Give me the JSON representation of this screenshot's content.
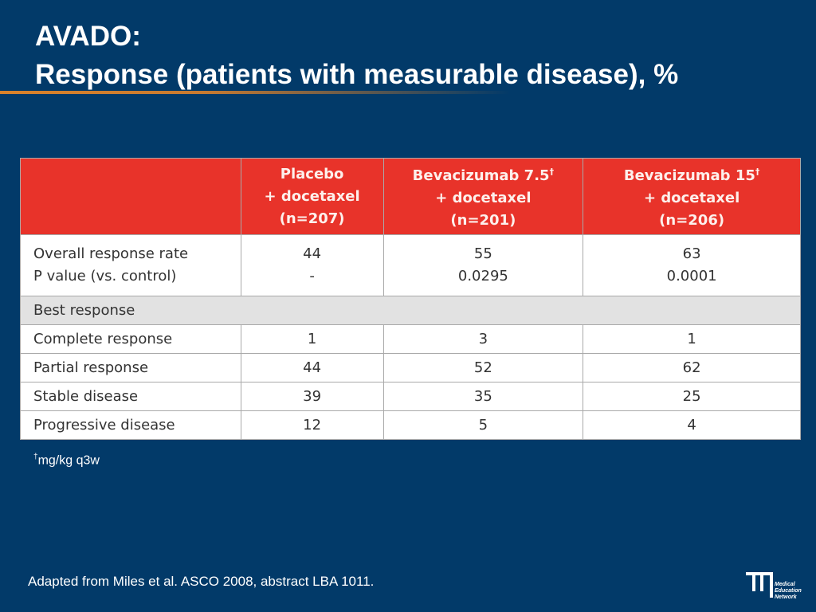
{
  "title": {
    "line1": "AVADO:",
    "line2": "Response (patients with measurable disease), %"
  },
  "table": {
    "columns": [
      {
        "line1": "Placebo",
        "line2": "+ docetaxel",
        "line3": "(n=207)"
      },
      {
        "line1": "Bevacizumab 7.5",
        "sup": "†",
        "line2": "+ docetaxel",
        "line3": "(n=201)"
      },
      {
        "line1": "Bevacizumab 15",
        "sup": "†",
        "line2": "+ docetaxel",
        "line3": "(n=206)"
      }
    ],
    "response_row": {
      "labels": [
        "Overall response rate",
        "P value (vs. control)"
      ],
      "values": [
        [
          44,
          "-"
        ],
        [
          55,
          0.0295
        ],
        [
          63,
          0.0001
        ]
      ]
    },
    "section": "Best response",
    "rows": [
      {
        "label": "Complete response",
        "values": [
          1,
          3,
          1
        ]
      },
      {
        "label": "Partial response",
        "values": [
          44,
          52,
          62
        ]
      },
      {
        "label": "Stable disease",
        "values": [
          39,
          35,
          25
        ]
      },
      {
        "label": "Progressive disease",
        "values": [
          12,
          5,
          4
        ]
      }
    ]
  },
  "footnote": {
    "sup": "†",
    "text": "mg/kg q3w"
  },
  "source": "Adapted from Miles et al. ASCO 2008, abstract LBA 1011.",
  "logo": {
    "line1": "Medical",
    "line2": "Education",
    "line3": "Network"
  }
}
